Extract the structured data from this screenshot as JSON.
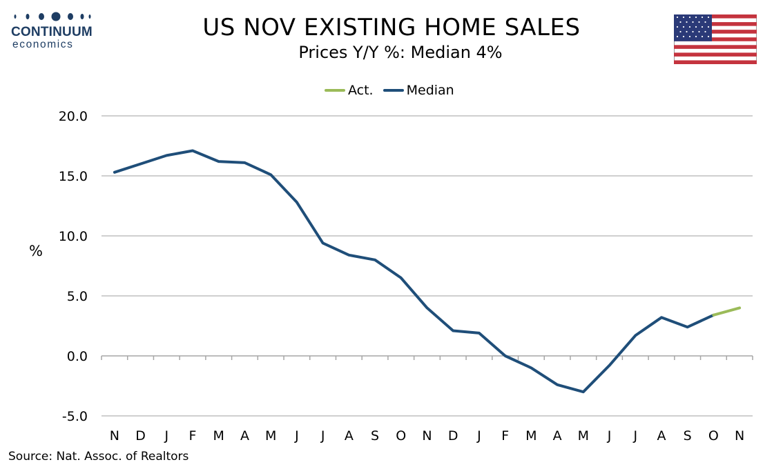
{
  "logo": {
    "wordmark": "CONTINUUM",
    "subtitle": "economics",
    "color": "#1e3d63"
  },
  "flag": {
    "icon": "us-flag-icon"
  },
  "colors": {
    "act": "#9bbb59",
    "median": "#1f4e79",
    "grid": "#bfbfbf"
  },
  "chart_data": {
    "type": "line",
    "title": "US NOV EXISTING HOME SALES",
    "subtitle": "Prices Y/Y %: Median 4%",
    "ylabel": "%",
    "xlabel": "",
    "ylim": [
      -5,
      20
    ],
    "yticks": [
      20,
      15,
      10,
      5,
      0,
      -5
    ],
    "ytick_labels": [
      "20.0",
      "15.0",
      "10.0",
      "5.0",
      "0.0",
      "-5.0"
    ],
    "categories": [
      "N",
      "D",
      "J",
      "F",
      "M",
      "A",
      "M",
      "J",
      "J",
      "A",
      "S",
      "O",
      "N",
      "D",
      "J",
      "F",
      "M",
      "A",
      "M",
      "J",
      "J",
      "A",
      "S",
      "O",
      "N"
    ],
    "grid": true,
    "legend": "top-center",
    "series": [
      {
        "name": "Act.",
        "color": "#9bbb59",
        "values": [
          null,
          null,
          null,
          null,
          null,
          null,
          null,
          null,
          null,
          null,
          null,
          null,
          null,
          null,
          null,
          null,
          null,
          null,
          null,
          null,
          null,
          null,
          null,
          3.4,
          4.0
        ]
      },
      {
        "name": "Median",
        "color": "#1f4e79",
        "values": [
          15.3,
          16.0,
          16.7,
          17.1,
          16.2,
          16.1,
          15.1,
          12.8,
          9.4,
          8.4,
          8.0,
          6.5,
          4.0,
          2.1,
          1.9,
          0.0,
          -1.0,
          -2.4,
          -3.0,
          -0.8,
          1.7,
          3.2,
          2.4,
          3.4,
          null
        ]
      }
    ]
  },
  "source": "Source: Nat. Assoc. of Realtors"
}
